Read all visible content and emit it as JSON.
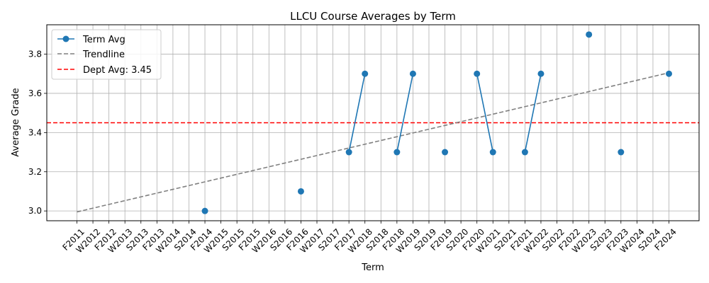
{
  "chart_data": {
    "type": "line",
    "title": "LLCU Course Averages by Term",
    "xlabel": "Term",
    "ylabel": "Average Grade",
    "ylim": [
      2.95,
      3.95
    ],
    "yticks": [
      3.0,
      3.2,
      3.4,
      3.6,
      3.8
    ],
    "ytick_labels": [
      "3.0",
      "3.2",
      "3.4",
      "3.6",
      "3.8"
    ],
    "grid": true,
    "legend_position": "top-left",
    "categories": [
      "F2011",
      "W2012",
      "F2012",
      "W2013",
      "S2013",
      "F2013",
      "W2014",
      "S2014",
      "F2014",
      "W2015",
      "S2015",
      "F2015",
      "W2016",
      "S2016",
      "F2016",
      "W2017",
      "S2017",
      "F2017",
      "W2018",
      "S2018",
      "F2018",
      "W2019",
      "S2019",
      "F2019",
      "S2020",
      "F2020",
      "W2021",
      "S2021",
      "F2021",
      "W2022",
      "S2022",
      "F2022",
      "W2023",
      "S2023",
      "F2023",
      "W2024",
      "S2024",
      "F2024"
    ],
    "series": [
      {
        "name": "Term Avg",
        "color": "#1f77b4",
        "style": "solid-line-with-markers",
        "values": [
          null,
          null,
          null,
          null,
          null,
          null,
          null,
          null,
          3.0,
          null,
          null,
          null,
          null,
          null,
          3.1,
          null,
          null,
          3.3,
          3.7,
          null,
          3.3,
          3.7,
          null,
          3.3,
          null,
          3.7,
          3.3,
          null,
          3.3,
          3.7,
          null,
          null,
          3.9,
          null,
          3.3,
          null,
          null,
          3.7
        ]
      },
      {
        "name": "Trendline",
        "color": "#808080",
        "style": "dashed",
        "x_start": "F2011",
        "x_end": "F2024",
        "y_start": 2.995,
        "y_end": 3.705
      },
      {
        "name": "Dept Avg: 3.45",
        "color": "#ff0000",
        "style": "dashed-horizontal",
        "value": 3.45
      }
    ]
  }
}
